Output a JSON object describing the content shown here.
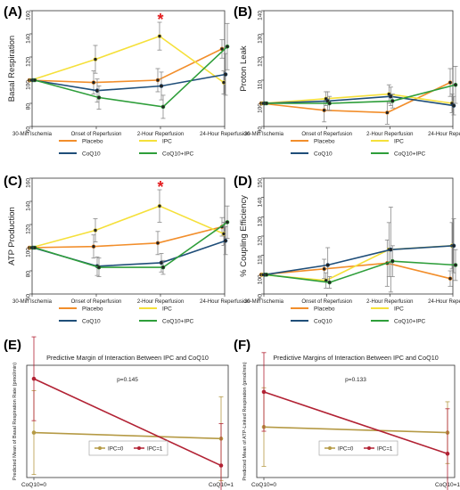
{
  "colors": {
    "placebo": "#f28e2b",
    "ipc": "#f5e03a",
    "coq10": "#1f4e79",
    "coq10_ipc": "#2e9e3a",
    "ipc0": "#b59a45",
    "ipc1": "#b22234",
    "star": "#e31a1c",
    "axis": "#333333",
    "grid": "#dddddd",
    "errorbar": "#888888"
  },
  "chart_data": [
    {
      "panel_label": "(A)",
      "type": "line",
      "ylabel": "Basal Respiration",
      "x": [
        "30-Min Ischemia",
        "Onset of Reperfusion",
        "2-Hour Reperfusion",
        "24-Hour Reperfusion"
      ],
      "ylim": [
        60,
        160
      ],
      "yticks": [
        60,
        80,
        100,
        120,
        140,
        160
      ],
      "grid": false,
      "legend_position": "bottom",
      "star_x_index": 2,
      "star_y": 153,
      "series": [
        {
          "name": "Placebo",
          "color_key": "placebo",
          "values": [
            100,
            98,
            100,
            127
          ],
          "errors": [
            0,
            10,
            10,
            8
          ]
        },
        {
          "name": "IPC",
          "color_key": "ipc",
          "values": [
            100,
            118,
            138,
            98
          ],
          "errors": [
            0,
            12,
            12,
            10
          ]
        },
        {
          "name": "CoQ10",
          "color_key": "coq10",
          "values": [
            100,
            91,
            95,
            105
          ],
          "errors": [
            0,
            10,
            12,
            18
          ]
        },
        {
          "name": "CoQ10+IPC",
          "color_key": "coq10_ipc",
          "values": [
            100,
            85,
            77,
            129
          ],
          "errors": [
            0,
            10,
            10,
            20
          ]
        }
      ]
    },
    {
      "panel_label": "(B)",
      "type": "line",
      "ylabel": "Proton Leak",
      "x": [
        "30-Min Ischemia",
        "Onset of Reperfusion",
        "2-Hour Reperfusion",
        "24-Hour Reperfusion"
      ],
      "ylim": [
        90,
        140
      ],
      "yticks": [
        90,
        100,
        110,
        120,
        130,
        140
      ],
      "grid": false,
      "legend_position": "bottom",
      "series": [
        {
          "name": "Placebo",
          "color_key": "placebo",
          "values": [
            100,
            97,
            96,
            109
          ],
          "errors": [
            0,
            5,
            5,
            6
          ]
        },
        {
          "name": "IPC",
          "color_key": "ipc",
          "values": [
            100,
            102,
            104,
            100
          ],
          "errors": [
            0,
            3,
            4,
            4
          ]
        },
        {
          "name": "CoQ10",
          "color_key": "coq10",
          "values": [
            100,
            101,
            103,
            99
          ],
          "errors": [
            0,
            4,
            4,
            4
          ]
        },
        {
          "name": "CoQ10+IPC",
          "color_key": "coq10_ipc",
          "values": [
            100,
            100,
            101,
            108
          ],
          "errors": [
            0,
            3,
            3,
            8
          ]
        }
      ]
    },
    {
      "panel_label": "(C)",
      "type": "line",
      "ylabel": "ATP Production",
      "x": [
        "30-Min Ischemia",
        "Onset of Reperfusion",
        "2-Hour Reperfusion",
        "24-Hour Reperfusion"
      ],
      "ylim": [
        60,
        160
      ],
      "yticks": [
        60,
        80,
        100,
        120,
        140,
        160
      ],
      "grid": false,
      "legend_position": "bottom",
      "star_x_index": 2,
      "star_y": 153,
      "series": [
        {
          "name": "Placebo",
          "color_key": "placebo",
          "values": [
            100,
            101,
            104,
            118
          ],
          "errors": [
            0,
            10,
            10,
            8
          ]
        },
        {
          "name": "IPC",
          "color_key": "ipc",
          "values": [
            100,
            115,
            136,
            112
          ],
          "errors": [
            0,
            10,
            14,
            10
          ]
        },
        {
          "name": "CoQ10",
          "color_key": "coq10",
          "values": [
            100,
            84,
            87,
            106
          ],
          "errors": [
            0,
            8,
            8,
            12
          ]
        },
        {
          "name": "CoQ10+IPC",
          "color_key": "coq10_ipc",
          "values": [
            100,
            83,
            83,
            122
          ],
          "errors": [
            0,
            8,
            6,
            14
          ]
        }
      ]
    },
    {
      "panel_label": "(D)",
      "type": "line",
      "ylabel": "% Coupling Efficiency",
      "x": [
        "30-Min Ischemia",
        "Onset of Reperfusion",
        "2-Hour Reperfusion",
        "24-Hour Reperfusion"
      ],
      "ylim": [
        90,
        150
      ],
      "yticks": [
        90,
        100,
        110,
        120,
        130,
        140,
        150
      ],
      "grid": false,
      "legend_position": "bottom",
      "series": [
        {
          "name": "Placebo",
          "color_key": "placebo",
          "values": [
            100,
            103,
            106,
            98
          ],
          "errors": [
            0,
            5,
            12,
            4
          ]
        },
        {
          "name": "IPC",
          "color_key": "ipc",
          "values": [
            100,
            97,
            113,
            115
          ],
          "errors": [
            0,
            4,
            14,
            12
          ]
        },
        {
          "name": "CoQ10",
          "color_key": "coq10",
          "values": [
            100,
            105,
            113,
            115
          ],
          "errors": [
            0,
            9,
            22,
            14
          ]
        },
        {
          "name": "CoQ10+IPC",
          "color_key": "coq10_ipc",
          "values": [
            100,
            96,
            107,
            105
          ],
          "errors": [
            0,
            3,
            8,
            8
          ]
        }
      ]
    },
    {
      "panel_label": "(E)",
      "type": "line",
      "title": "Predictive Margin of Interaction Between IPC and CoQ10",
      "ylabel": "Predicted Mean of Basal Respiration Rate (pmol/min)",
      "x": [
        "CoQ10=0",
        "CoQ10=1"
      ],
      "ylim": [
        55,
        130
      ],
      "annotation": "p=0.145",
      "legend_position": "bottom",
      "series": [
        {
          "name": "IPC=0",
          "color_key": "ipc0",
          "values": [
            85,
            81
          ],
          "errors": [
            28,
            28
          ]
        },
        {
          "name": "IPC=1",
          "color_key": "ipc1",
          "values": [
            121,
            63
          ],
          "errors": [
            28,
            28
          ]
        }
      ]
    },
    {
      "panel_label": "(F)",
      "type": "line",
      "title": "Predictive Margins of Interaction Between IPC and CoQ10",
      "ylabel": "Predicted Mean of ATP-Linked Respiration (pmol/min)",
      "x": [
        "CoQ10=0",
        "CoQ10=1"
      ],
      "ylim": [
        40,
        120
      ],
      "annotation": "p=0.133",
      "legend_position": "bottom",
      "series": [
        {
          "name": "IPC=0",
          "color_key": "ipc0",
          "values": [
            76,
            72
          ],
          "errors": [
            28,
            22
          ]
        },
        {
          "name": "IPC=1",
          "color_key": "ipc1",
          "values": [
            101,
            57
          ],
          "errors": [
            28,
            32
          ]
        }
      ]
    }
  ]
}
